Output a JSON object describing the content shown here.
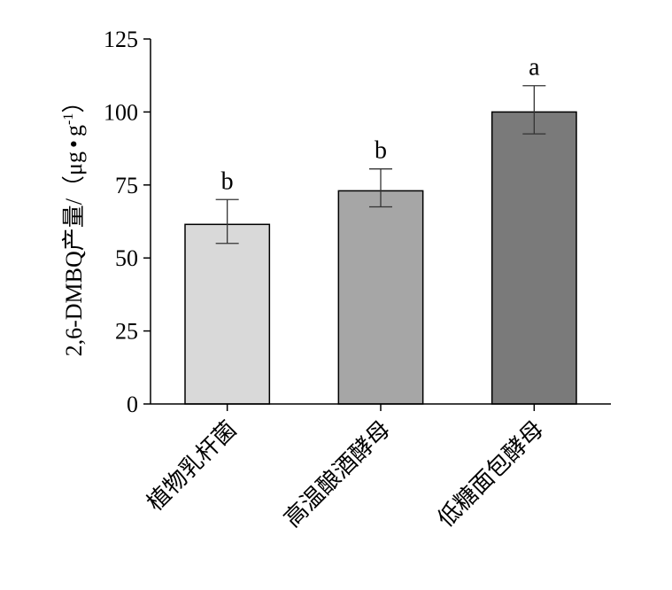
{
  "chart_data": {
    "type": "bar",
    "categories": [
      "植物乳杆菌",
      "高温酿酒酵母",
      "低糖面包酵母"
    ],
    "values": [
      61.5,
      73,
      100
    ],
    "error_low": [
      55,
      67.5,
      92.5
    ],
    "error_high": [
      70,
      80.5,
      109
    ],
    "significance": [
      "b",
      "b",
      "a"
    ],
    "bar_colors": [
      "#d9d9d9",
      "#a6a6a6",
      "#7a7a7a"
    ],
    "ylabel_main": "2,6-DMBQ产量/（μg",
    "ylabel_dot": "•",
    "ylabel_unit": "g",
    "ylabel_sup": "-1",
    "ylabel_close": "）",
    "ylim": [
      0,
      125
    ],
    "yticks": [
      0,
      25,
      50,
      75,
      100,
      125
    ],
    "ytick_labels": [
      "0",
      "25",
      "50",
      "75",
      "100",
      "125"
    ],
    "grid": false
  }
}
